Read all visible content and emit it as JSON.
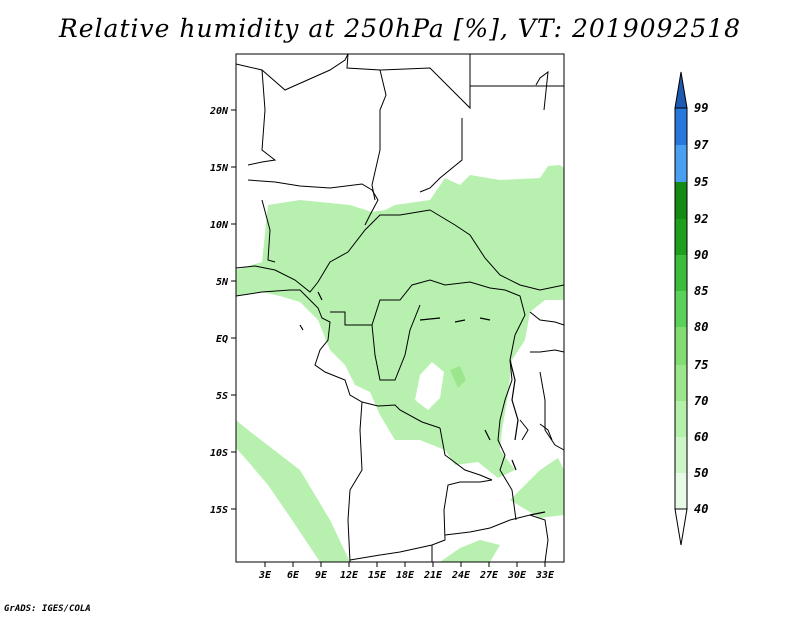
{
  "title": "Relative humidity at 250hPa [%], VT: 2019092518",
  "credit": "GrADS: IGES/COLA",
  "map": {
    "lat_labels": [
      "20N",
      "15N",
      "10N",
      "5N",
      "EQ",
      "5S",
      "10S",
      "15S"
    ],
    "lon_labels": [
      "3E",
      "6E",
      "9E",
      "12E",
      "15E",
      "18E",
      "21E",
      "24E",
      "27E",
      "30E",
      "33E"
    ]
  },
  "colorbar": {
    "levels": [
      "40",
      "50",
      "60",
      "70",
      "75",
      "80",
      "85",
      "90",
      "92",
      "95",
      "97",
      "99"
    ],
    "colors": [
      "#ffffff",
      "#e6fae6",
      "#cdf5c8",
      "#b4f0aa",
      "#9be68c",
      "#82dc72",
      "#5ad25a",
      "#3cbe3c",
      "#1ea01e",
      "#148c14",
      "#4aa0f0",
      "#2878dc",
      "#1e5ab4"
    ]
  }
}
